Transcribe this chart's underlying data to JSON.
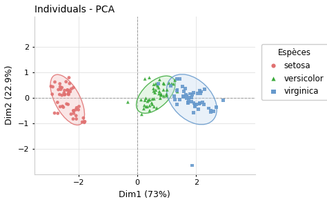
{
  "title": "Individuals - PCA",
  "xlabel": "Dim1 (73%)",
  "ylabel": "Dim2 (22.9%)",
  "xlim": [
    -3.5,
    4.0
  ],
  "ylim": [
    -3.0,
    3.2
  ],
  "xticks": [
    -2,
    0,
    2
  ],
  "yticks": [
    -2,
    -1,
    0,
    1,
    2
  ],
  "background_color": "#ffffff",
  "grid_color": "#e0e0e0",
  "species": [
    "setosa",
    "versicolor",
    "virginica"
  ],
  "colors": [
    "#e07070",
    "#3aaa3a",
    "#6699cc"
  ],
  "fill_colors": [
    "#f2b8b8",
    "#b8e8b8",
    "#c0d8f0"
  ],
  "markers": [
    "o",
    "^",
    "s"
  ],
  "legend_title": "Espèces",
  "setosa_x": [
    -2.68,
    -2.71,
    -2.89,
    -2.37,
    -2.54,
    -2.07,
    -2.49,
    -2.33,
    -2.7,
    -2.35,
    -2.32,
    -2.24,
    -2.62,
    -2.81,
    -2.16,
    -1.8,
    -2.17,
    -2.3,
    -1.78,
    -2.42,
    -2.0,
    -2.33,
    -2.56,
    -2.08,
    -2.09,
    -1.87,
    -2.17,
    -2.47,
    -2.47,
    -2.56,
    -2.63,
    -2.06,
    -1.98,
    -2.16,
    -2.38,
    -2.62,
    -2.8,
    -2.64,
    -2.93,
    -2.4,
    -2.51,
    -2.25,
    -2.6,
    -1.83,
    -2.18,
    -2.46,
    -2.34,
    -2.87,
    -2.35,
    -2.28
  ],
  "setosa_y": [
    0.32,
    -0.18,
    0.14,
    0.31,
    -0.33,
    -0.83,
    0.19,
    0.29,
    -0.61,
    -0.26,
    0.79,
    0.35,
    -0.35,
    -0.6,
    -0.61,
    -0.97,
    -0.5,
    0.56,
    -0.93,
    0.63,
    -0.47,
    0.13,
    0.1,
    -0.7,
    -0.47,
    -0.95,
    0.4,
    0.29,
    0.12,
    0.4,
    0.55,
    -0.39,
    -0.34,
    -0.52,
    0.3,
    0.43,
    0.62,
    0.13,
    0.45,
    -0.24,
    -0.37,
    -0.64,
    0.33,
    -0.79,
    -0.83,
    0.13,
    0.18,
    0.43,
    0.14,
    0.24
  ],
  "versicolor_x": [
    1.28,
    0.73,
    1.23,
    0.41,
    1.08,
    0.76,
    1.36,
    -0.32,
    0.89,
    0.57,
    0.26,
    0.8,
    0.42,
    0.82,
    0.38,
    1.17,
    1.01,
    0.56,
    0.68,
    0.13,
    0.7,
    0.42,
    0.99,
    0.9,
    0.63,
    0.26,
    0.74,
    0.55,
    0.63,
    0.22,
    0.24,
    0.57,
    0.78,
    0.3,
    0.42,
    0.6,
    0.99,
    0.49,
    0.15,
    0.66,
    0.34,
    0.51,
    0.29,
    0.89,
    0.91,
    0.35,
    0.8,
    0.51,
    0.56,
    0.75
  ],
  "versicolor_y": [
    0.69,
    0.39,
    0.54,
    0.79,
    0.57,
    0.71,
    0.24,
    -0.17,
    0.57,
    -0.04,
    0.74,
    0.1,
    -0.08,
    0.12,
    -0.09,
    0.55,
    0.31,
    0.26,
    0.5,
    -0.08,
    0.45,
    -0.31,
    0.08,
    0.07,
    0.55,
    -0.1,
    0.16,
    0.36,
    0.3,
    -0.43,
    -0.3,
    -0.35,
    -0.02,
    -0.35,
    -0.5,
    0.2,
    0.14,
    -0.2,
    -0.65,
    -0.4,
    -0.35,
    -0.05,
    -0.02,
    0.31,
    0.54,
    -0.14,
    0.15,
    -0.26,
    0.52,
    0.25
  ],
  "virginica_x": [
    2.15,
    1.34,
    2.49,
    1.45,
    2.12,
    2.92,
    0.72,
    1.9,
    2.27,
    2.28,
    1.84,
    1.28,
    2.17,
    1.63,
    1.74,
    1.96,
    1.76,
    2.12,
    2.69,
    1.57,
    1.34,
    2.01,
    1.9,
    1.45,
    1.53,
    1.35,
    1.14,
    2.04,
    1.79,
    1.83,
    2.49,
    2.11,
    1.95,
    2.21,
    2.07,
    2.58,
    1.96,
    1.36,
    1.56,
    1.73,
    1.58,
    1.68,
    1.25,
    1.86,
    2.43,
    1.73,
    1.65,
    1.68,
    1.92,
    1.87
  ],
  "virginica_y": [
    0.18,
    0.28,
    -0.49,
    -0.06,
    -0.21,
    -0.09,
    0.55,
    -0.58,
    -0.26,
    0.33,
    -0.16,
    -0.07,
    0.24,
    0.36,
    -0.09,
    -0.34,
    0.01,
    0.29,
    -0.37,
    0.03,
    -0.27,
    -0.26,
    0.19,
    0.73,
    0.44,
    0.75,
    0.48,
    0.17,
    0.16,
    0.02,
    -0.57,
    -0.24,
    -0.3,
    -0.18,
    -0.44,
    -0.52,
    -0.29,
    0.32,
    0.07,
    -0.18,
    0.25,
    -0.01,
    0.07,
    0.11,
    -0.41,
    -0.2,
    0.13,
    0.08,
    -0.2,
    -2.65
  ],
  "title_fontsize": 10,
  "label_fontsize": 9,
  "tick_fontsize": 8,
  "legend_fontsize": 8.5
}
